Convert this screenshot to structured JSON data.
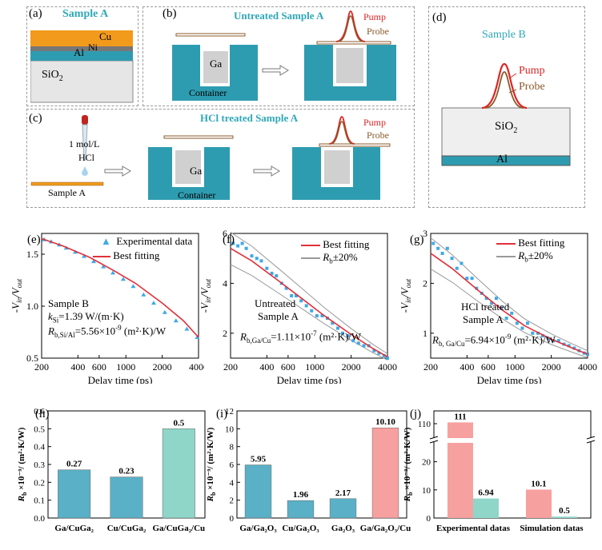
{
  "colors": {
    "teal": "#2e9cb0",
    "cu": "#f29a1b",
    "grey": "#d8d8d8",
    "pump": "#e02424",
    "probe": "#8b5a2b",
    "marker": "#3fa9e6",
    "fit": "#e0303a",
    "pink": "#f7a0a0",
    "mint": "#8fd6c9",
    "blue": "#5ab0c6"
  },
  "panel_a": {
    "tag": "(a)",
    "title": "Sample A",
    "cu": "Cu",
    "ni": "Ni",
    "al": "Al",
    "sio2": "SiO",
    "sub2": "2"
  },
  "panel_b": {
    "tag": "(b)",
    "title": "Untreated Sample A",
    "ga": "Ga",
    "container": "Container",
    "pump": "Pump",
    "probe": "Probe"
  },
  "panel_c": {
    "tag": "(c)",
    "title": "HCl treated Sample A",
    "conc": "1 mol/L",
    "hcl": "HCl",
    "sample": "Sample A",
    "ga": "Ga",
    "container": "Container",
    "pump": "Pump",
    "probe": "Probe"
  },
  "panel_d": {
    "tag": "(d)",
    "title": "Sample B",
    "pump": "Pump",
    "probe": "Probe",
    "sio2": "SiO",
    "sub2": "2",
    "al": "Al"
  },
  "panel_e": {
    "tag": "(e)",
    "legend_exp": "Experimental data",
    "legend_fit": "Best fitting",
    "ann1": "Sample B",
    "ann2": "k",
    "ann2b": "Si",
    "ann2c": "=1.39 W/(m·K)",
    "ann3": "R",
    "ann3b": "b,Si/Al",
    "ann3c": "=5.56×10",
    "ann3d": "-9",
    "ann3e": " (m²·K)/W"
  },
  "panel_f": {
    "tag": "(f)",
    "legend_fit": "Best fitting",
    "legend_rb": "R",
    "legend_rb2": "b",
    "legend_rb3": "±20%",
    "ann1": "Untreated",
    "ann2": "Sample A",
    "ann3": "R",
    "ann3b": "b,Ga/Cu",
    "ann3c": "=1.11×10",
    "ann3d": "-7",
    "ann3e": " (m²·K)/W"
  },
  "panel_g": {
    "tag": "(g)",
    "legend_fit": "Best fitting",
    "legend_rb": "R",
    "legend_rb2": "b",
    "legend_rb3": "±20%",
    "ann1": "HCl treated",
    "ann2": "Sample A",
    "ann3": "R",
    "ann3b": "b, Ga/Cu",
    "ann3c": "=6.94×10",
    "ann3d": "-9",
    "ann3e": " (m²·K)/W"
  },
  "axes_common": {
    "xlabel": "Delay time (ps)",
    "ylabel": "-V",
    "ylabel_in": "in",
    "ylabel_out": "out",
    "xticks": [
      "200",
      "400",
      "600",
      "1000",
      "2000",
      "4000"
    ]
  },
  "chart_data": [
    {
      "type": "scatter",
      "panel": "e",
      "x_scale": "log",
      "xlim": [
        200,
        4000
      ],
      "ylim": [
        0.5,
        1.7
      ],
      "yticks": [
        "0.5",
        "1.0",
        "1.5"
      ],
      "series": [
        {
          "name": "Experimental data",
          "x": [
            210,
            240,
            280,
            320,
            380,
            450,
            540,
            650,
            780,
            950,
            1150,
            1400,
            1700,
            2100,
            2600,
            3200,
            3900
          ],
          "y": [
            1.64,
            1.62,
            1.59,
            1.56,
            1.52,
            1.48,
            1.43,
            1.38,
            1.32,
            1.26,
            1.19,
            1.11,
            1.03,
            0.94,
            0.86,
            0.78,
            0.7
          ]
        },
        {
          "name": "Best fitting",
          "x": [
            200,
            300,
            500,
            800,
            1200,
            2000,
            3000,
            4000
          ],
          "y": [
            1.65,
            1.58,
            1.47,
            1.34,
            1.22,
            1.03,
            0.86,
            0.7
          ]
        }
      ]
    },
    {
      "type": "scatter",
      "panel": "f",
      "x_scale": "log",
      "xlim": [
        200,
        4000
      ],
      "ylim": [
        1,
        6
      ],
      "yticks": [
        "2",
        "4",
        "6"
      ],
      "series": [
        {
          "name": "data",
          "x": [
            210,
            230,
            250,
            270,
            300,
            330,
            360,
            400,
            440,
            480,
            530,
            580,
            640,
            700,
            770,
            850,
            940,
            1040,
            1150,
            1270,
            1400,
            1550,
            1700,
            1880,
            2080,
            2300,
            2550,
            2800,
            3100,
            3400,
            3750,
            4000
          ],
          "y": [
            5.6,
            5.5,
            5.6,
            5.4,
            5.1,
            5.0,
            4.9,
            4.6,
            4.4,
            4.3,
            4.0,
            3.8,
            3.5,
            3.5,
            3.3,
            3.1,
            2.9,
            2.7,
            2.7,
            2.6,
            2.4,
            2.2,
            2.0,
            1.9,
            1.7,
            1.6,
            1.5,
            1.5,
            1.3,
            1.2,
            1.1,
            1.0
          ]
        },
        {
          "name": "Best fitting",
          "x": [
            200,
            300,
            500,
            800,
            1200,
            2000,
            3000,
            4000
          ],
          "y": [
            5.4,
            4.9,
            4.1,
            3.35,
            2.7,
            1.95,
            1.4,
            1.05
          ]
        }
      ]
    },
    {
      "type": "scatter",
      "panel": "g",
      "x_scale": "log",
      "xlim": [
        200,
        4000
      ],
      "ylim": [
        0.5,
        3
      ],
      "yticks": [
        "1",
        "2",
        "3"
      ],
      "series": [
        {
          "name": "data",
          "x": [
            210,
            230,
            250,
            275,
            300,
            330,
            360,
            400,
            440,
            480,
            530,
            580,
            640,
            700,
            770,
            850,
            940,
            1040,
            1150,
            1270,
            1400,
            1550,
            1700,
            1880,
            2080,
            2300,
            2550,
            2800,
            3100,
            3400,
            3750,
            4000
          ],
          "y": [
            2.8,
            2.7,
            2.6,
            2.7,
            2.5,
            2.3,
            2.4,
            2.1,
            2.1,
            1.9,
            1.8,
            1.7,
            1.6,
            1.7,
            1.5,
            1.3,
            1.4,
            1.2,
            1.1,
            1.2,
            1.0,
            1.0,
            0.95,
            0.9,
            0.85,
            0.85,
            0.78,
            0.75,
            0.7,
            0.65,
            0.6,
            0.58
          ]
        },
        {
          "name": "Best fitting",
          "x": [
            200,
            300,
            500,
            800,
            1200,
            2000,
            3000,
            4000
          ],
          "y": [
            2.6,
            2.3,
            1.85,
            1.45,
            1.15,
            0.88,
            0.7,
            0.58
          ]
        }
      ]
    },
    {
      "type": "bar",
      "panel": "h",
      "categories": [
        "Ga/CuGa₂",
        "Cu/CuGa₂",
        "Ga/CuGa₂/Cu"
      ],
      "values": [
        0.27,
        0.23,
        0.5
      ],
      "labels": [
        "0.27",
        "0.23",
        "0.5"
      ],
      "ylim": [
        0,
        0.6
      ],
      "yticks": [
        "0.0",
        "0.1",
        "0.2",
        "0.3",
        "0.4",
        "0.5",
        "0.6"
      ],
      "ylabel": "R",
      "ylabel2": "b",
      "ylabel3": " ×10⁻⁹/ (m²·K/W)"
    },
    {
      "type": "bar",
      "panel": "i",
      "categories": [
        "Ga/Ga₂O₃",
        "Cu/Ga₂O₃",
        "Ga₂O₃",
        "Ga/Ga₂O₃/Cu"
      ],
      "values": [
        5.95,
        1.96,
        2.17,
        10.1
      ],
      "labels": [
        "5.95",
        "1.96",
        "2.17",
        "10.10"
      ],
      "ylim": [
        0,
        12
      ],
      "yticks": [
        "0",
        "2",
        "4",
        "6",
        "8",
        "10",
        "12"
      ],
      "ylabel": "R",
      "ylabel2": "b",
      "ylabel3": " ×10⁻⁹/ (m²·K/W)"
    },
    {
      "type": "bar",
      "panel": "j",
      "categories": [
        "Experimental datas",
        "Simulation datas"
      ],
      "values": [
        [
          111,
          6.94
        ],
        [
          10.1,
          0.5
        ]
      ],
      "labels": [
        "111",
        "6.94",
        "10.1",
        "0.5"
      ],
      "yticks": [
        "0",
        "10",
        "20",
        "110"
      ],
      "ylabel": "R",
      "ylabel2": "b",
      "ylabel3": " ×10⁻⁹/ (m²·K/W)"
    }
  ],
  "tags": {
    "h": "(h)",
    "i": "(i)",
    "j": "(j)"
  }
}
